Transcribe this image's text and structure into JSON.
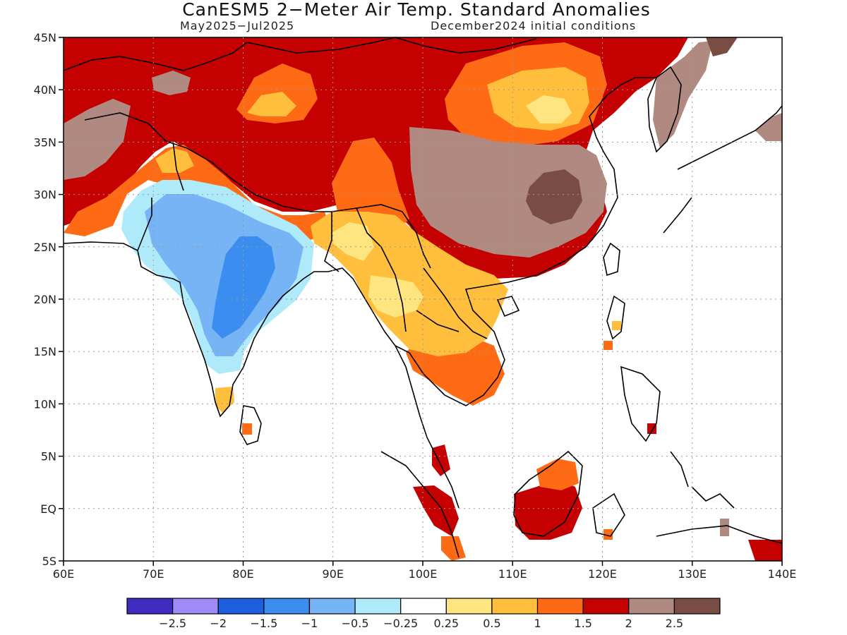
{
  "title": "CanESM5 2−Meter Air Temp. Standard Anomalies",
  "subtitle_period": "May2025−Jul2025",
  "subtitle_init": "December2024 initial conditions",
  "axes": {
    "lon_labels": [
      "60E",
      "70E",
      "80E",
      "90E",
      "100E",
      "110E",
      "120E",
      "130E",
      "140E"
    ],
    "lat_labels": [
      "45N",
      "40N",
      "35N",
      "30N",
      "25N",
      "20N",
      "15N",
      "10N",
      "5N",
      "EQ",
      "5S"
    ]
  },
  "colorbar": {
    "colors": [
      "#3f2bbf",
      "#9f8af7",
      "#1e5fe0",
      "#3c8df0",
      "#76b4f5",
      "#aeeafa",
      "#ffffff",
      "#ffe580",
      "#ffbe3c",
      "#ff6a14",
      "#c40000",
      "#b08a80",
      "#7a4d44"
    ],
    "labels": [
      "−2.5",
      "−2",
      "−1.5",
      "−1",
      "−0.5",
      "−0.25",
      "0.25",
      "0.5",
      "1",
      "1.5",
      "2",
      "2.5"
    ]
  }
}
